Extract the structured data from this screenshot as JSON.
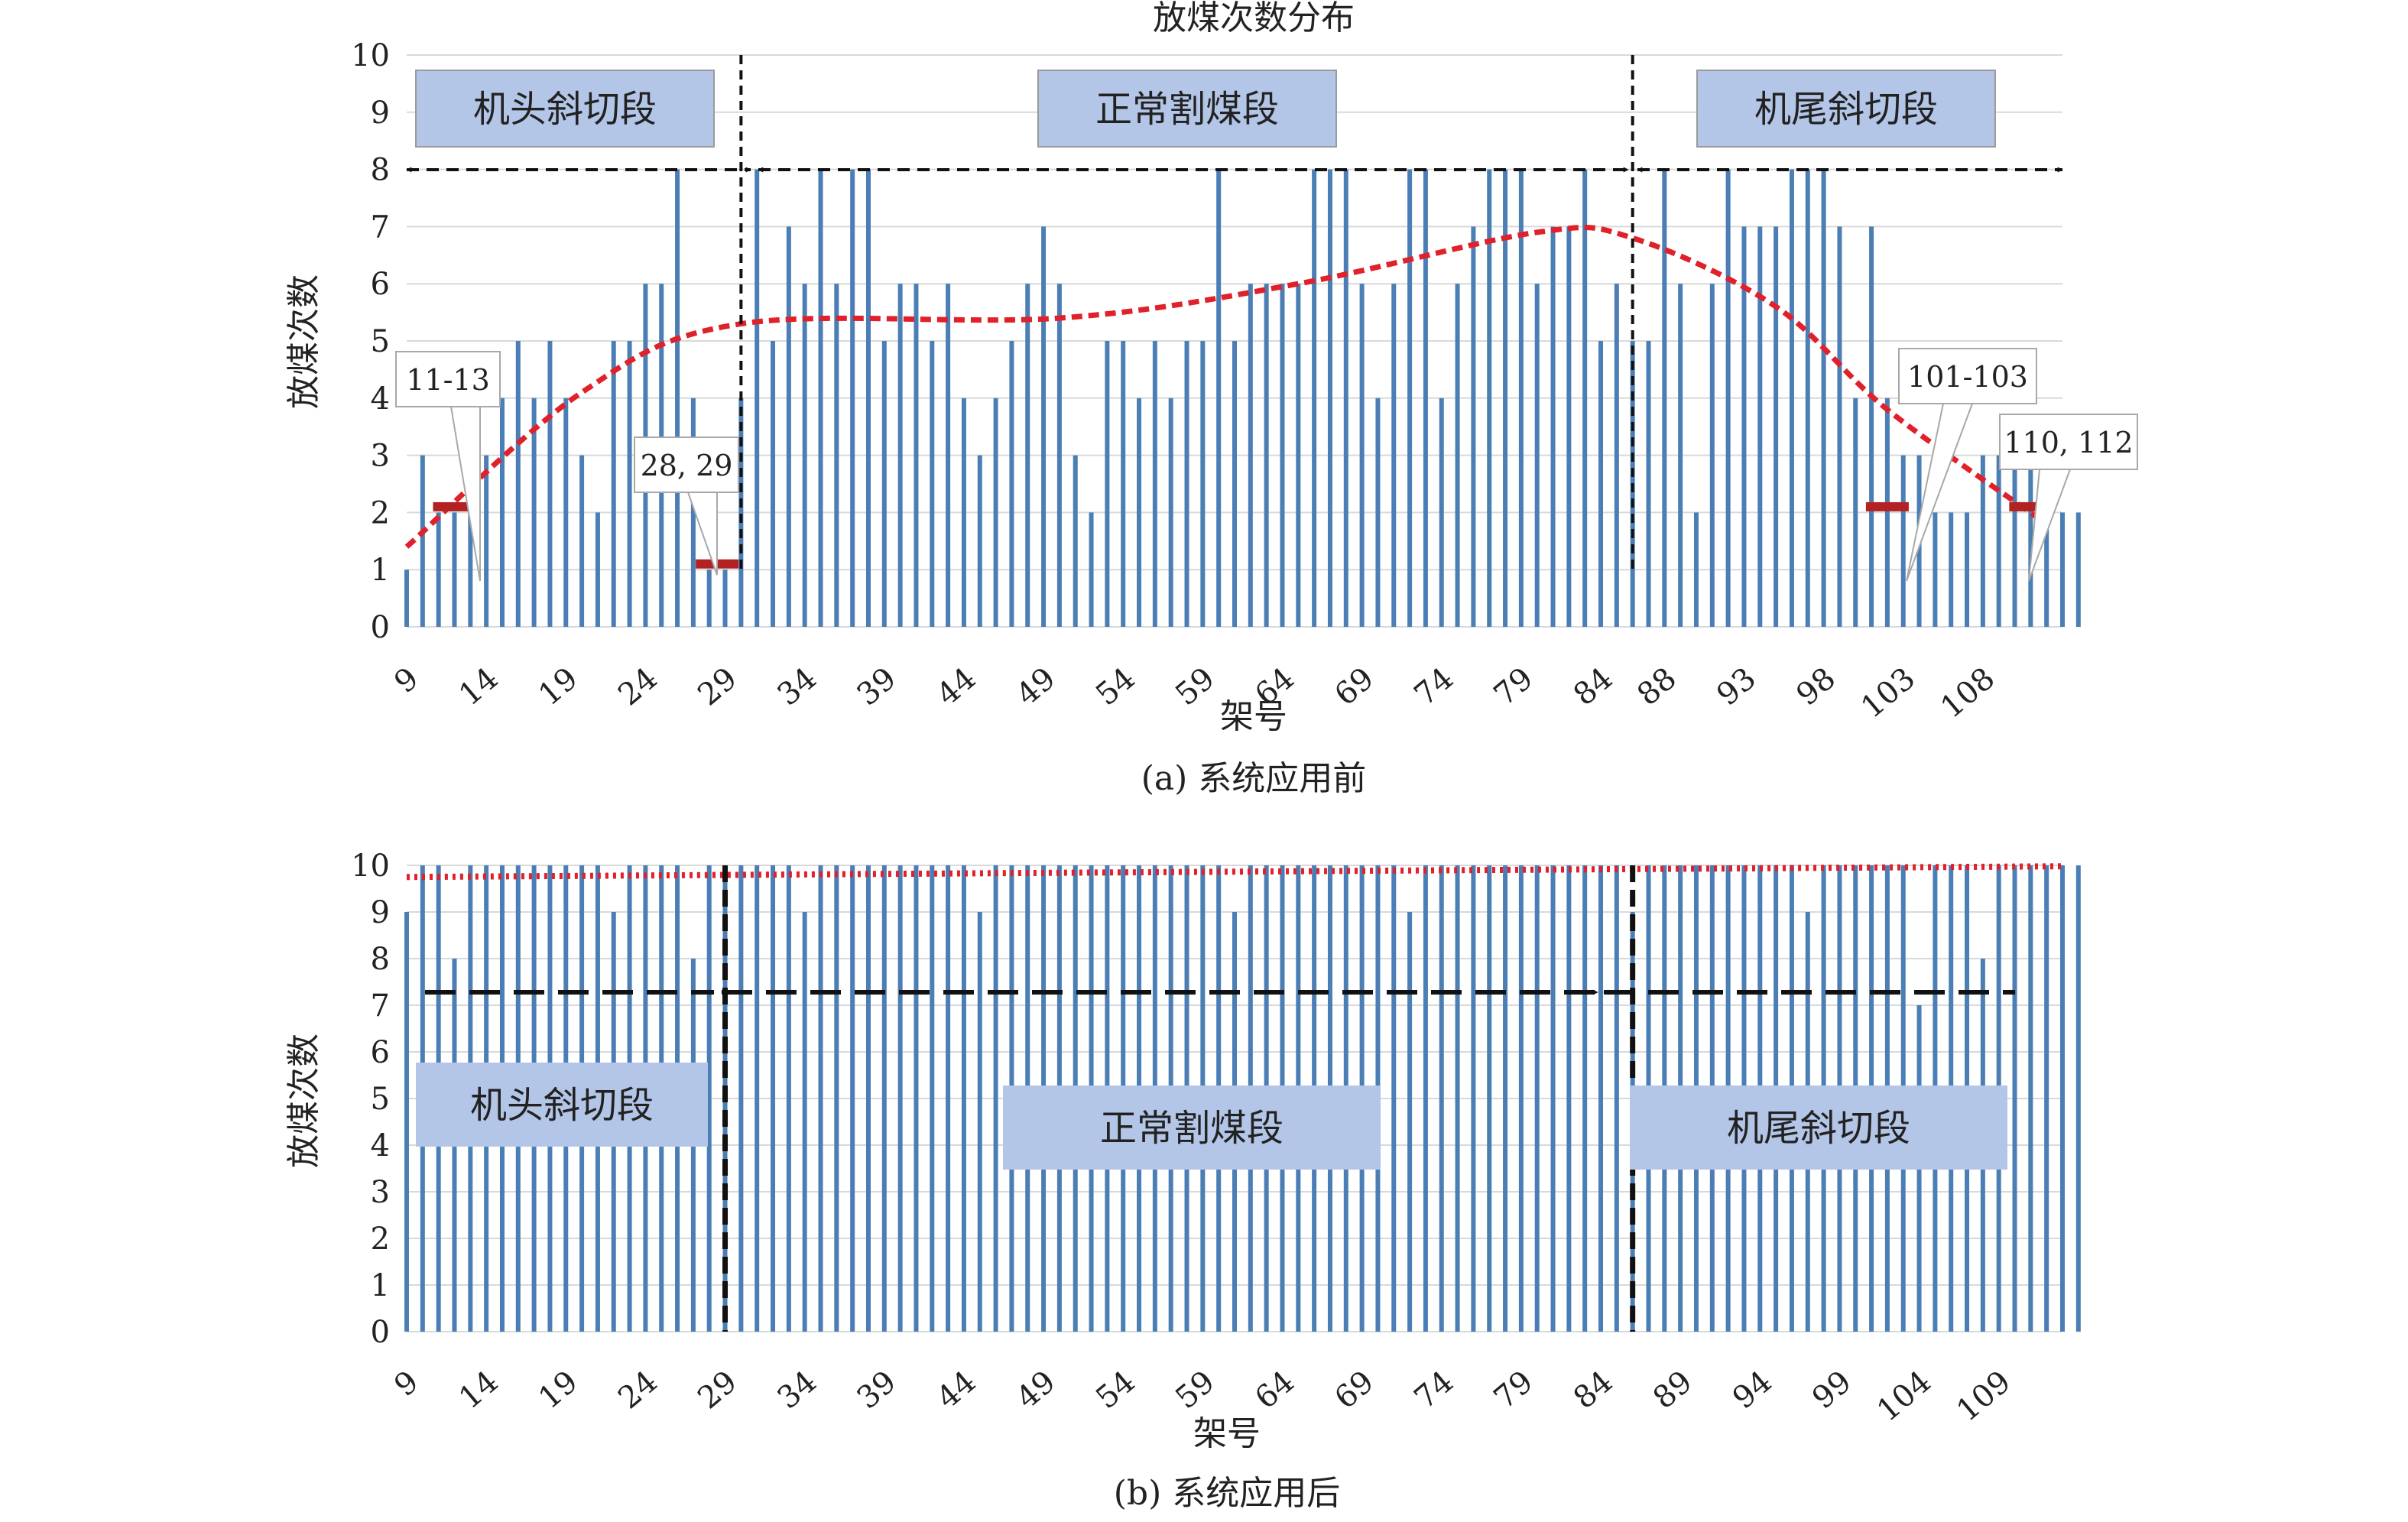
{
  "chart_data": [
    {
      "type": "bar",
      "title": "放煤次数分布",
      "xlabel": "架号",
      "ylabel": "放煤次数",
      "caption": "(a) 系统应用前",
      "ylim": [
        0,
        10
      ],
      "yticks": [
        "0",
        "1",
        "2",
        "3",
        "4",
        "5",
        "6",
        "7",
        "8",
        "9",
        "10"
      ],
      "grid": true,
      "x_start": 9,
      "x_end": 113,
      "xtick_labels": [
        "9",
        "14",
        "19",
        "24",
        "29",
        "34",
        "39",
        "44",
        "49",
        "54",
        "59",
        "64",
        "69",
        "74",
        "79",
        "84",
        "88",
        "93",
        "98",
        "103",
        "108"
      ],
      "xtick_at": [
        9,
        14,
        19,
        24,
        29,
        34,
        39,
        44,
        49,
        54,
        59,
        64,
        69,
        74,
        79,
        84,
        88,
        93,
        98,
        103,
        108
      ],
      "values": [
        1,
        3,
        2,
        2,
        2,
        3,
        4,
        5,
        4,
        5,
        4,
        3,
        2,
        5,
        5,
        6,
        6,
        8,
        4,
        1,
        1,
        4,
        8,
        5,
        7,
        6,
        8,
        6,
        8,
        8,
        5,
        6,
        6,
        5,
        6,
        4,
        3,
        4,
        5,
        6,
        7,
        6,
        3,
        2,
        5,
        5,
        4,
        5,
        4,
        5,
        5,
        8,
        5,
        6,
        6,
        6,
        6,
        8,
        8,
        8,
        6,
        4,
        6,
        8,
        8,
        4,
        6,
        7,
        8,
        8,
        8,
        6,
        7,
        7,
        8,
        5,
        6,
        5,
        5,
        8,
        6,
        2,
        6,
        8,
        7,
        7,
        7,
        8,
        8,
        8,
        7,
        4,
        7,
        4,
        3,
        3,
        2,
        2,
        2,
        3,
        3,
        3,
        3,
        3,
        2,
        2
      ],
      "annotations": [
        "11-13",
        "28, 29",
        "101-103",
        "110, 112"
      ],
      "segments": [
        "机头斜切段",
        "正常割煤段",
        "机尾斜切段"
      ],
      "segment_dividers": [
        30,
        86
      ],
      "marker_values": [
        {
          "x": 12,
          "y": 2.1
        },
        {
          "x": 28.5,
          "y": 1.1
        },
        {
          "x": 102,
          "y": 2.1
        },
        {
          "x": 111,
          "y": 2.1
        }
      ],
      "trend_line": {
        "x": [
          9,
          20,
          30,
          50,
          65,
          80,
          86,
          95,
          102,
          112
        ],
        "y": [
          1.4,
          4.1,
          5.3,
          5.4,
          6.0,
          6.9,
          6.8,
          5.6,
          3.8,
          1.8
        ]
      },
      "colors": {
        "bars": "#4a7eb5",
        "trend": "#e0202a",
        "marker": "#b22222",
        "grid": "#d9d9d9",
        "segment_box": "#b4c6e7"
      }
    },
    {
      "type": "bar",
      "xlabel": "架号",
      "ylabel": "放煤次数",
      "caption": "(b) 系统应用后",
      "ylim": [
        0,
        10
      ],
      "yticks": [
        "0",
        "1",
        "2",
        "3",
        "4",
        "5",
        "6",
        "7",
        "8",
        "9",
        "10"
      ],
      "grid": true,
      "x_start": 9,
      "x_end": 113,
      "xtick_labels": [
        "9",
        "14",
        "19",
        "24",
        "29",
        "34",
        "39",
        "44",
        "49",
        "54",
        "59",
        "64",
        "69",
        "74",
        "79",
        "84",
        "89",
        "94",
        "99",
        "104",
        "109"
      ],
      "xtick_at": [
        9,
        14,
        19,
        24,
        29,
        34,
        39,
        44,
        49,
        54,
        59,
        64,
        69,
        74,
        79,
        84,
        89,
        94,
        99,
        104,
        109
      ],
      "values": [
        9,
        10,
        10,
        8,
        10,
        10,
        10,
        10,
        10,
        10,
        10,
        10,
        10,
        9,
        10,
        10,
        10,
        10,
        8,
        10,
        10,
        10,
        10,
        10,
        10,
        9,
        10,
        10,
        10,
        10,
        10,
        10,
        10,
        10,
        10,
        10,
        9,
        10,
        10,
        10,
        10,
        10,
        10,
        10,
        10,
        10,
        10,
        10,
        10,
        10,
        10,
        10,
        9,
        10,
        10,
        10,
        10,
        10,
        10,
        10,
        10,
        10,
        10,
        9,
        10,
        10,
        10,
        10,
        10,
        10,
        10,
        10,
        10,
        10,
        10,
        10,
        10,
        9,
        10,
        10,
        10,
        10,
        10,
        10,
        10,
        10,
        10,
        10,
        9,
        10,
        10,
        10,
        10,
        10,
        10,
        7,
        10,
        10,
        10,
        8,
        10,
        10,
        10,
        10,
        10,
        10
      ],
      "segments": [
        "机头斜切段",
        "正常割煤段",
        "机尾斜切段"
      ],
      "segment_dividers": [
        29,
        86
      ],
      "trend_line": {
        "x": [
          9,
          113
        ],
        "y": [
          9.75,
          9.98
        ]
      },
      "colors": {
        "bars": "#4a7eb5",
        "trend": "#e0202a",
        "grid": "#d9d9d9",
        "segment_box": "#b4c6e7"
      }
    }
  ]
}
